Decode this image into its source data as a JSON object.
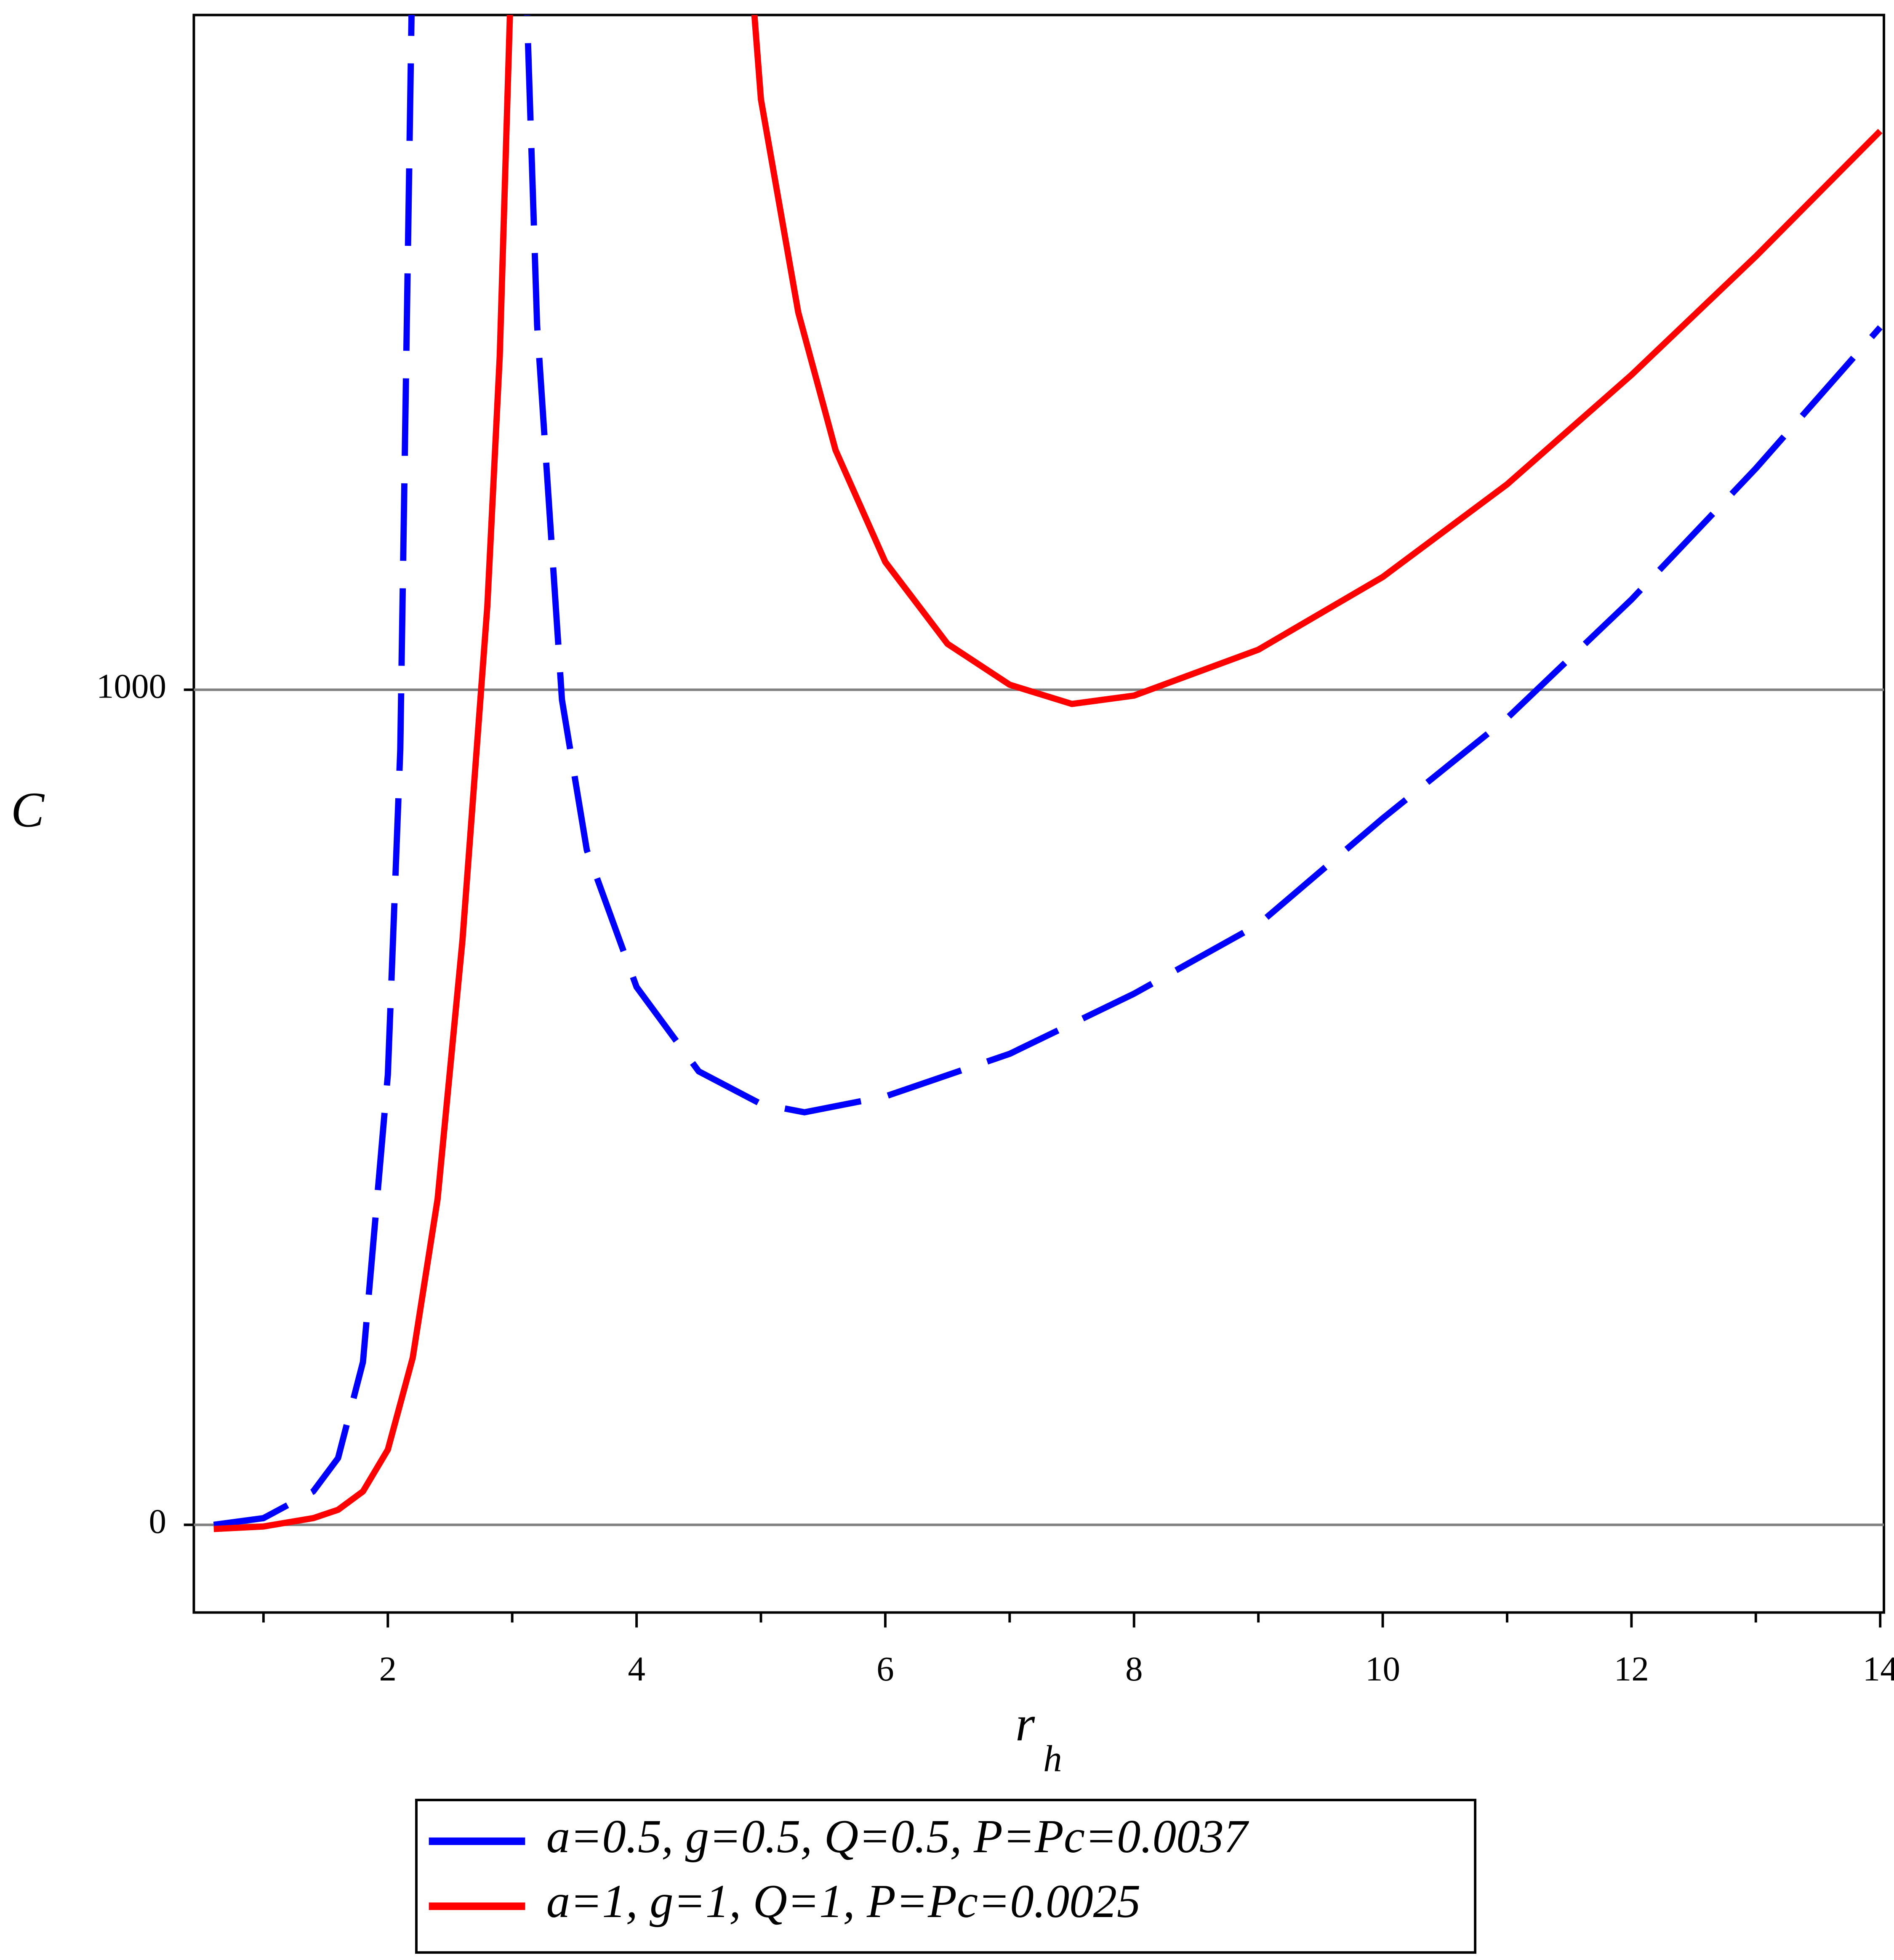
{
  "chart_data": {
    "type": "line",
    "xlabel": {
      "base": "r",
      "sub": "h"
    },
    "ylabel": "C",
    "xlim": [
      0.44,
      14.03
    ],
    "ylim": [
      -105,
      1808
    ],
    "xticks": [
      2,
      4,
      6,
      8,
      10,
      12,
      14
    ],
    "xminor": [
      1,
      3,
      5,
      7,
      9,
      11,
      13
    ],
    "yticks": [
      0,
      1000
    ],
    "grid": true,
    "legend": "bottom",
    "series": [
      {
        "name": "a=0.5, g=0.5, Q=0.5, P=Pc=0.0037",
        "color": "#0000ff",
        "dash": "dashed",
        "x": [
          0.6,
          1.0,
          1.4,
          1.6,
          1.8,
          2.0,
          2.1,
          2.2,
          2.6,
          3.1,
          3.2,
          3.4,
          3.6,
          4.0,
          4.5,
          5.0,
          5.35,
          6,
          7,
          8,
          9,
          10,
          11,
          12,
          13,
          14
        ],
        "values": [
          0,
          8,
          40,
          80,
          195,
          539,
          928,
          1900,
          null,
          1900,
          1437,
          988,
          808,
          644,
          543,
          504,
          494,
          513,
          564,
          636,
          719,
          846,
          966,
          1108,
          1265,
          1434
        ]
      },
      {
        "name": "a=1, g=1, Q=1, P=Pc=0.0025",
        "color": "#ff0000",
        "dash": "solid",
        "x": [
          0.6,
          1.0,
          1.4,
          1.6,
          1.8,
          2.0,
          2.2,
          2.4,
          2.6,
          2.8,
          2.9,
          3.0,
          4.0,
          4.9,
          5.0,
          5.3,
          5.6,
          6.0,
          6.5,
          7.0,
          7.5,
          8.0,
          9,
          10,
          11,
          12,
          13,
          14
        ],
        "values": [
          -5,
          -2,
          8,
          18,
          40,
          90,
          200,
          390,
          700,
          1100,
          1400,
          1900,
          null,
          1900,
          1707,
          1452,
          1287,
          1153,
          1055,
          1006,
          983,
          993,
          1048,
          1135,
          1246,
          1377,
          1519,
          1669
        ]
      }
    ]
  }
}
